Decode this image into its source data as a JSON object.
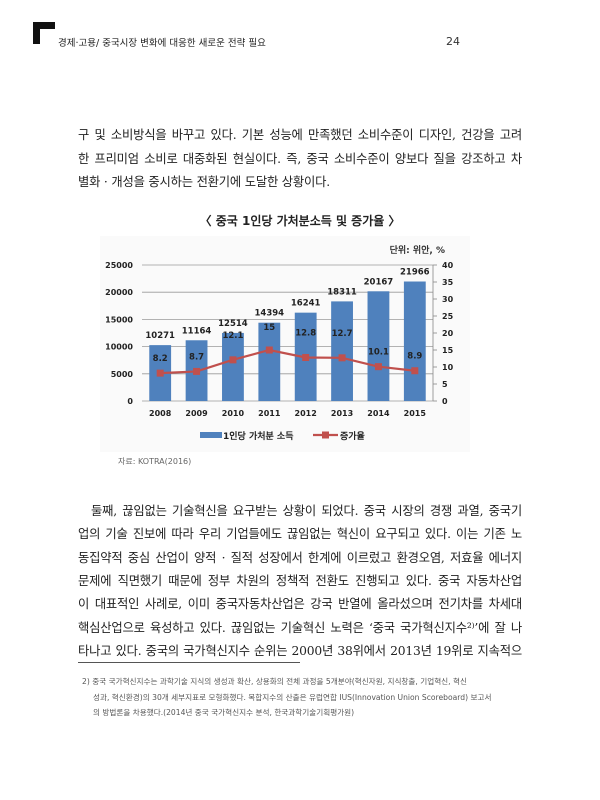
{
  "header": {
    "title": "경제·고용/ 중국시장 변화에 대응한 새로운 전략 필요",
    "page_number": "24",
    "icon": "corner-bracket-icon"
  },
  "paragraph1": [
    "구 및 소비방식을 바꾸고 있다. 기본 성능에 만족했던 소비수준이 디자인, 건강을 고려",
    "한 프리미엄 소비로 대중화된 현실이다. 즉, 중국 소비수준이 양보다 질을 강조하고 차",
    "별화 · 개성을 중시하는 전환기에 도달한 상황이다."
  ],
  "figure": {
    "title": "〈 중국 1인당 가처분소득 및 증가율 〉",
    "source": "자료: KOTRA(2016)"
  },
  "chart_data": {
    "type": "bar+line",
    "unit_label": "단위: 위안, %",
    "categories": [
      "2008",
      "2009",
      "2010",
      "2011",
      "2012",
      "2013",
      "2014",
      "2015"
    ],
    "series": [
      {
        "name": "1인당 가처분 소득",
        "type": "bar",
        "axis": "left",
        "color": "#4f81bd",
        "values": [
          10271,
          11164,
          12514,
          14394,
          16241,
          18311,
          20167,
          21966
        ],
        "labels": [
          "10271",
          "11164",
          "12514",
          "14394",
          "16241",
          "18311",
          "20167",
          "21966"
        ]
      },
      {
        "name": "증가율",
        "type": "line",
        "axis": "right",
        "color": "#c0504d",
        "values": [
          8.2,
          8.7,
          12.1,
          15,
          12.8,
          12.7,
          10.1,
          8.9
        ],
        "labels": [
          "8.2",
          "8.7",
          "12.1",
          "15",
          "12.8",
          "12.7",
          "10.1",
          "8.9"
        ]
      }
    ],
    "y_left": {
      "range": [
        0,
        25000
      ],
      "ticks": [
        "0",
        "5000",
        "10000",
        "15000",
        "20000",
        "25000"
      ]
    },
    "y_right": {
      "range": [
        0,
        40
      ],
      "ticks": [
        "0",
        "5",
        "10",
        "15",
        "20",
        "25",
        "30",
        "35",
        "40"
      ]
    },
    "grid": true,
    "legend": "bottom"
  },
  "paragraph2": [
    "둘째, 끊임없는 기술혁신을 요구받는 상황이 되었다. 중국 시장의 경쟁 과열, 중국기",
    "업의 기술 진보에 따라 우리 기업들에도 끊임없는 혁신이 요구되고 있다. 이는 기존 노",
    "동집약적 중심 산업이 양적 · 질적 성장에서 한계에 이르렀고 환경오염, 저효율 에너지",
    "문제에 직면했기 때문에 정부 차원의 정책적 전환도 진행되고 있다. 중국 자동차산업",
    "이 대표적인 사례로, 이미 중국자동차산업은 강국 반열에 올라섰으며 전기차를 차세대",
    "핵심산업으로 육성하고 있다. 끊임없는 기술혁신 노력은 ‘중국 국가혁신지수²⁾’에 잘 나",
    "타나고 있다. 중국의 국가혁신지수 순위는 2000년 38위에서 2013년 19위로 지속적으"
  ],
  "footnote": [
    "2) 중국 국가혁신지수는 과학기술 지식의 생성과 확산, 상용화의 전체 과정을 5개분야(혁신자원, 지식창출, 기업혁신, 혁신",
    "성과, 혁신환경)의 30개 세부지표로 모형화했다. 복합지수의 산출은 유럽연합 IUS(Innovation Union Scoreboard) 보고서",
    "의 방법론을 차용했다.(2014년 중국 국가혁신지수 분석, 한국과학기술기획평가원)"
  ]
}
